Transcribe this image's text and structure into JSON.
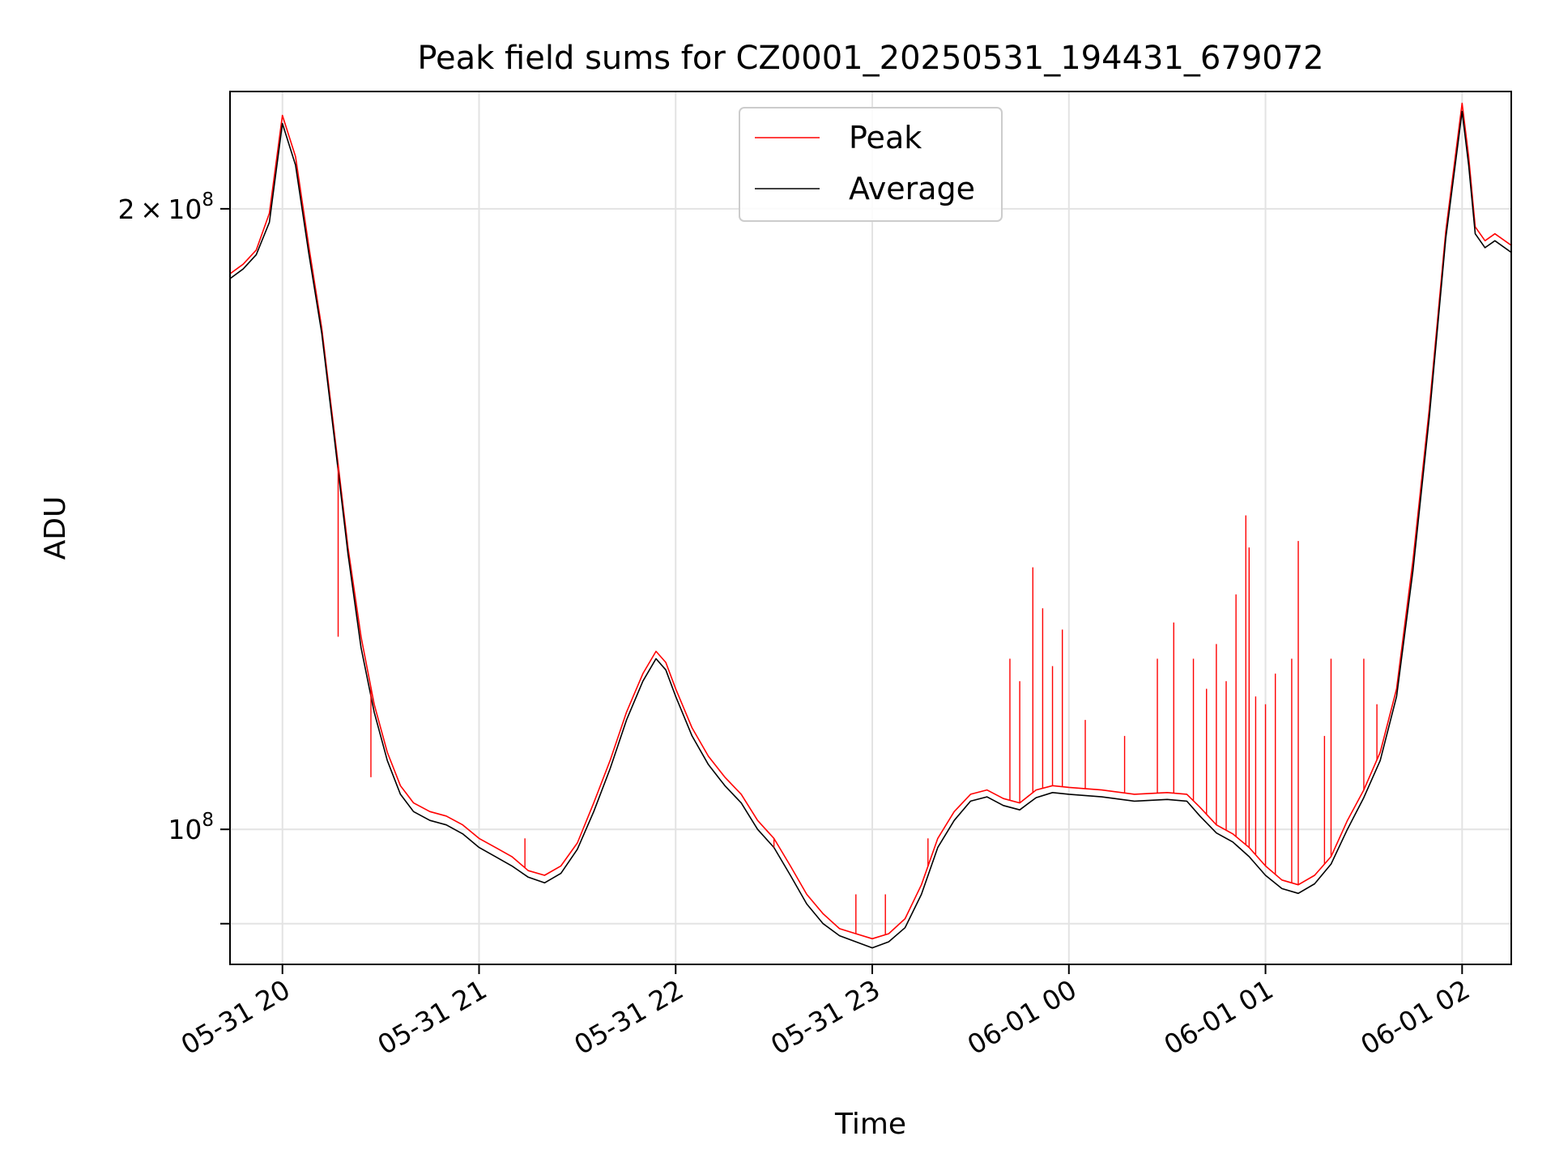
{
  "chart_data": {
    "type": "line",
    "title": "Peak field sums for CZ0001_20250531_194431_679072",
    "xlabel": "Time",
    "ylabel": "ADU",
    "y_scale": "log",
    "grid": true,
    "legend_position": "top-center",
    "xlim": [
      "2025-05-31 19:44",
      "2025-06-01 02:15"
    ],
    "ylim": [
      86000000,
      228000000
    ],
    "x_ticks": [
      {
        "value": "2025-05-31 20:00",
        "label": "05-31 20"
      },
      {
        "value": "2025-05-31 21:00",
        "label": "05-31 21"
      },
      {
        "value": "2025-05-31 22:00",
        "label": "05-31 22"
      },
      {
        "value": "2025-05-31 23:00",
        "label": "05-31 23"
      },
      {
        "value": "2025-06-01 00:00",
        "label": "06-01 00"
      },
      {
        "value": "2025-06-01 01:00",
        "label": "06-01 01"
      },
      {
        "value": "2025-06-01 02:00",
        "label": "06-01 02"
      }
    ],
    "y_ticks": [
      {
        "value": 200000000,
        "label_base": "2 × 10",
        "label_exp": "8"
      },
      {
        "value": 100000000,
        "label_base": "10",
        "label_exp": "8"
      },
      {
        "value": 90000000,
        "label_base": "",
        "label_exp": ""
      }
    ],
    "series": [
      {
        "name": "Peak",
        "color": "#ff0000",
        "points": [
          [
            "2025-05-31 19:44",
            186000000
          ],
          [
            "2025-05-31 19:48",
            188000000
          ],
          [
            "2025-05-31 19:52",
            191000000
          ],
          [
            "2025-05-31 19:56",
            199000000
          ],
          [
            "2025-05-31 20:00",
            222000000
          ],
          [
            "2025-05-31 20:04",
            212000000
          ],
          [
            "2025-05-31 20:08",
            192000000
          ],
          [
            "2025-05-31 20:12",
            175000000
          ],
          [
            "2025-05-31 20:16",
            155000000
          ],
          [
            "2025-05-31 20:20",
            137000000
          ],
          [
            "2025-05-31 20:24",
            124000000
          ],
          [
            "2025-05-31 20:28",
            115000000
          ],
          [
            "2025-05-31 20:32",
            109000000
          ],
          [
            "2025-05-31 20:36",
            105000000
          ],
          [
            "2025-05-31 20:40",
            103000000
          ],
          [
            "2025-05-31 20:45",
            102000000
          ],
          [
            "2025-05-31 20:50",
            101500000
          ],
          [
            "2025-05-31 20:55",
            100500000
          ],
          [
            "2025-05-31 21:00",
            99000000
          ],
          [
            "2025-05-31 21:05",
            98000000
          ],
          [
            "2025-05-31 21:10",
            97000000
          ],
          [
            "2025-05-31 21:15",
            95500000
          ],
          [
            "2025-05-31 21:20",
            95000000
          ],
          [
            "2025-05-31 21:25",
            96000000
          ],
          [
            "2025-05-31 21:30",
            98500000
          ],
          [
            "2025-05-31 21:35",
            103000000
          ],
          [
            "2025-05-31 21:40",
            108000000
          ],
          [
            "2025-05-31 21:45",
            114000000
          ],
          [
            "2025-05-31 21:50",
            119000000
          ],
          [
            "2025-05-31 21:54",
            122000000
          ],
          [
            "2025-05-31 21:57",
            120500000
          ],
          [
            "2025-05-31 22:00",
            117000000
          ],
          [
            "2025-05-31 22:05",
            112000000
          ],
          [
            "2025-05-31 22:10",
            108500000
          ],
          [
            "2025-05-31 22:15",
            106000000
          ],
          [
            "2025-05-31 22:20",
            104000000
          ],
          [
            "2025-05-31 22:25",
            101000000
          ],
          [
            "2025-05-31 22:30",
            99000000
          ],
          [
            "2025-05-31 22:35",
            96000000
          ],
          [
            "2025-05-31 22:40",
            93000000
          ],
          [
            "2025-05-31 22:45",
            91000000
          ],
          [
            "2025-05-31 22:50",
            89500000
          ],
          [
            "2025-05-31 22:55",
            89000000
          ],
          [
            "2025-05-31 23:00",
            88500000
          ],
          [
            "2025-05-31 23:05",
            89000000
          ],
          [
            "2025-05-31 23:10",
            90500000
          ],
          [
            "2025-05-31 23:15",
            94000000
          ],
          [
            "2025-05-31 23:20",
            99000000
          ],
          [
            "2025-05-31 23:25",
            102000000
          ],
          [
            "2025-05-31 23:30",
            104000000
          ],
          [
            "2025-05-31 23:35",
            104500000
          ],
          [
            "2025-05-31 23:40",
            103500000
          ],
          [
            "2025-05-31 23:45",
            103000000
          ],
          [
            "2025-05-31 23:50",
            104500000
          ],
          [
            "2025-05-31 23:55",
            105000000
          ],
          [
            "2025-06-01 00:00",
            104800000
          ],
          [
            "2025-06-01 00:10",
            104500000
          ],
          [
            "2025-06-01 00:20",
            104000000
          ],
          [
            "2025-06-01 00:30",
            104200000
          ],
          [
            "2025-06-01 00:36",
            104000000
          ],
          [
            "2025-06-01 00:40",
            102500000
          ],
          [
            "2025-06-01 00:45",
            100500000
          ],
          [
            "2025-06-01 00:50",
            99500000
          ],
          [
            "2025-06-01 00:55",
            98000000
          ],
          [
            "2025-06-01 01:00",
            96000000
          ],
          [
            "2025-06-01 01:05",
            94500000
          ],
          [
            "2025-06-01 01:10",
            94000000
          ],
          [
            "2025-06-01 01:15",
            95000000
          ],
          [
            "2025-06-01 01:20",
            97000000
          ],
          [
            "2025-06-01 01:25",
            101000000
          ],
          [
            "2025-06-01 01:30",
            104500000
          ],
          [
            "2025-06-01 01:35",
            109000000
          ],
          [
            "2025-06-01 01:40",
            117000000
          ],
          [
            "2025-06-01 01:45",
            135000000
          ],
          [
            "2025-06-01 01:50",
            160000000
          ],
          [
            "2025-06-01 01:55",
            195000000
          ],
          [
            "2025-06-01 02:00",
            225000000
          ],
          [
            "2025-06-01 02:02",
            212000000
          ],
          [
            "2025-06-01 02:04",
            196000000
          ],
          [
            "2025-06-01 02:07",
            193000000
          ],
          [
            "2025-06-01 02:10",
            194500000
          ],
          [
            "2025-06-01 02:15",
            192000000
          ]
        ],
        "spikes": [
          [
            "2025-05-31 20:17",
            124000000
          ],
          [
            "2025-05-31 20:27",
            106000000
          ],
          [
            "2025-05-31 21:14",
            99000000
          ],
          [
            "2025-05-31 22:30",
            98000000
          ],
          [
            "2025-05-31 22:55",
            93000000
          ],
          [
            "2025-05-31 23:04",
            93000000
          ],
          [
            "2025-05-31 23:17",
            99000000
          ],
          [
            "2025-05-31 23:42",
            121000000
          ],
          [
            "2025-05-31 23:45",
            118000000
          ],
          [
            "2025-05-31 23:49",
            134000000
          ],
          [
            "2025-05-31 23:52",
            128000000
          ],
          [
            "2025-05-31 23:55",
            120000000
          ],
          [
            "2025-05-31 23:58",
            125000000
          ],
          [
            "2025-06-01 00:05",
            113000000
          ],
          [
            "2025-06-01 00:17",
            111000000
          ],
          [
            "2025-06-01 00:27",
            121000000
          ],
          [
            "2025-06-01 00:32",
            126000000
          ],
          [
            "2025-06-01 00:38",
            121000000
          ],
          [
            "2025-06-01 00:42",
            117000000
          ],
          [
            "2025-06-01 00:45",
            123000000
          ],
          [
            "2025-06-01 00:48",
            118000000
          ],
          [
            "2025-06-01 00:51",
            130000000
          ],
          [
            "2025-06-01 00:54",
            142000000
          ],
          [
            "2025-06-01 00:55",
            137000000
          ],
          [
            "2025-06-01 00:57",
            116000000
          ],
          [
            "2025-06-01 01:00",
            115000000
          ],
          [
            "2025-06-01 01:03",
            119000000
          ],
          [
            "2025-06-01 01:08",
            121000000
          ],
          [
            "2025-06-01 01:10",
            138000000
          ],
          [
            "2025-06-01 01:18",
            111000000
          ],
          [
            "2025-06-01 01:20",
            121000000
          ],
          [
            "2025-06-01 01:30",
            121000000
          ],
          [
            "2025-06-01 01:34",
            115000000
          ]
        ]
      },
      {
        "name": "Average",
        "color": "#000000",
        "points": [
          [
            "2025-05-31 19:44",
            185000000
          ],
          [
            "2025-05-31 19:48",
            187000000
          ],
          [
            "2025-05-31 19:52",
            190000000
          ],
          [
            "2025-05-31 19:56",
            197000000
          ],
          [
            "2025-05-31 20:00",
            220000000
          ],
          [
            "2025-05-31 20:04",
            210000000
          ],
          [
            "2025-05-31 20:08",
            190500000
          ],
          [
            "2025-05-31 20:12",
            174000000
          ],
          [
            "2025-05-31 20:16",
            154000000
          ],
          [
            "2025-05-31 20:20",
            136000000
          ],
          [
            "2025-05-31 20:24",
            122500000
          ],
          [
            "2025-05-31 20:28",
            114000000
          ],
          [
            "2025-05-31 20:32",
            108000000
          ],
          [
            "2025-05-31 20:36",
            104000000
          ],
          [
            "2025-05-31 20:40",
            102000000
          ],
          [
            "2025-05-31 20:45",
            101000000
          ],
          [
            "2025-05-31 20:50",
            100500000
          ],
          [
            "2025-05-31 20:55",
            99500000
          ],
          [
            "2025-05-31 21:00",
            98000000
          ],
          [
            "2025-05-31 21:05",
            97000000
          ],
          [
            "2025-05-31 21:10",
            96000000
          ],
          [
            "2025-05-31 21:15",
            94800000
          ],
          [
            "2025-05-31 21:20",
            94200000
          ],
          [
            "2025-05-31 21:25",
            95200000
          ],
          [
            "2025-05-31 21:30",
            97800000
          ],
          [
            "2025-05-31 21:35",
            102000000
          ],
          [
            "2025-05-31 21:40",
            107000000
          ],
          [
            "2025-05-31 21:45",
            113000000
          ],
          [
            "2025-05-31 21:50",
            118000000
          ],
          [
            "2025-05-31 21:54",
            121000000
          ],
          [
            "2025-05-31 21:57",
            119500000
          ],
          [
            "2025-05-31 22:00",
            116000000
          ],
          [
            "2025-05-31 22:05",
            111000000
          ],
          [
            "2025-05-31 22:10",
            107500000
          ],
          [
            "2025-05-31 22:15",
            105000000
          ],
          [
            "2025-05-31 22:20",
            103000000
          ],
          [
            "2025-05-31 22:25",
            100000000
          ],
          [
            "2025-05-31 22:30",
            98000000
          ],
          [
            "2025-05-31 22:35",
            95000000
          ],
          [
            "2025-05-31 22:40",
            92000000
          ],
          [
            "2025-05-31 22:45",
            90000000
          ],
          [
            "2025-05-31 22:50",
            88800000
          ],
          [
            "2025-05-31 22:55",
            88200000
          ],
          [
            "2025-05-31 23:00",
            87600000
          ],
          [
            "2025-05-31 23:05",
            88200000
          ],
          [
            "2025-05-31 23:10",
            89600000
          ],
          [
            "2025-05-31 23:15",
            93000000
          ],
          [
            "2025-05-31 23:20",
            98000000
          ],
          [
            "2025-05-31 23:25",
            101000000
          ],
          [
            "2025-05-31 23:30",
            103200000
          ],
          [
            "2025-05-31 23:35",
            103700000
          ],
          [
            "2025-05-31 23:40",
            102700000
          ],
          [
            "2025-05-31 23:45",
            102200000
          ],
          [
            "2025-05-31 23:50",
            103600000
          ],
          [
            "2025-05-31 23:55",
            104200000
          ],
          [
            "2025-06-01 00:00",
            104000000
          ],
          [
            "2025-06-01 00:10",
            103700000
          ],
          [
            "2025-06-01 00:20",
            103200000
          ],
          [
            "2025-06-01 00:30",
            103400000
          ],
          [
            "2025-06-01 00:36",
            103200000
          ],
          [
            "2025-06-01 00:40",
            101500000
          ],
          [
            "2025-06-01 00:45",
            99600000
          ],
          [
            "2025-06-01 00:50",
            98600000
          ],
          [
            "2025-06-01 00:55",
            97000000
          ],
          [
            "2025-06-01 01:00",
            95000000
          ],
          [
            "2025-06-01 01:05",
            93600000
          ],
          [
            "2025-06-01 01:10",
            93100000
          ],
          [
            "2025-06-01 01:15",
            94100000
          ],
          [
            "2025-06-01 01:20",
            96200000
          ],
          [
            "2025-06-01 01:25",
            100000000
          ],
          [
            "2025-06-01 01:30",
            103600000
          ],
          [
            "2025-06-01 01:35",
            108000000
          ],
          [
            "2025-06-01 01:40",
            116000000
          ],
          [
            "2025-06-01 01:45",
            133500000
          ],
          [
            "2025-06-01 01:50",
            158500000
          ],
          [
            "2025-06-01 01:55",
            193500000
          ],
          [
            "2025-06-01 02:00",
            223000000
          ],
          [
            "2025-06-01 02:02",
            210000000
          ],
          [
            "2025-06-01 02:04",
            194500000
          ],
          [
            "2025-06-01 02:07",
            191500000
          ],
          [
            "2025-06-01 02:10",
            193000000
          ],
          [
            "2025-06-01 02:15",
            190500000
          ]
        ]
      }
    ]
  }
}
